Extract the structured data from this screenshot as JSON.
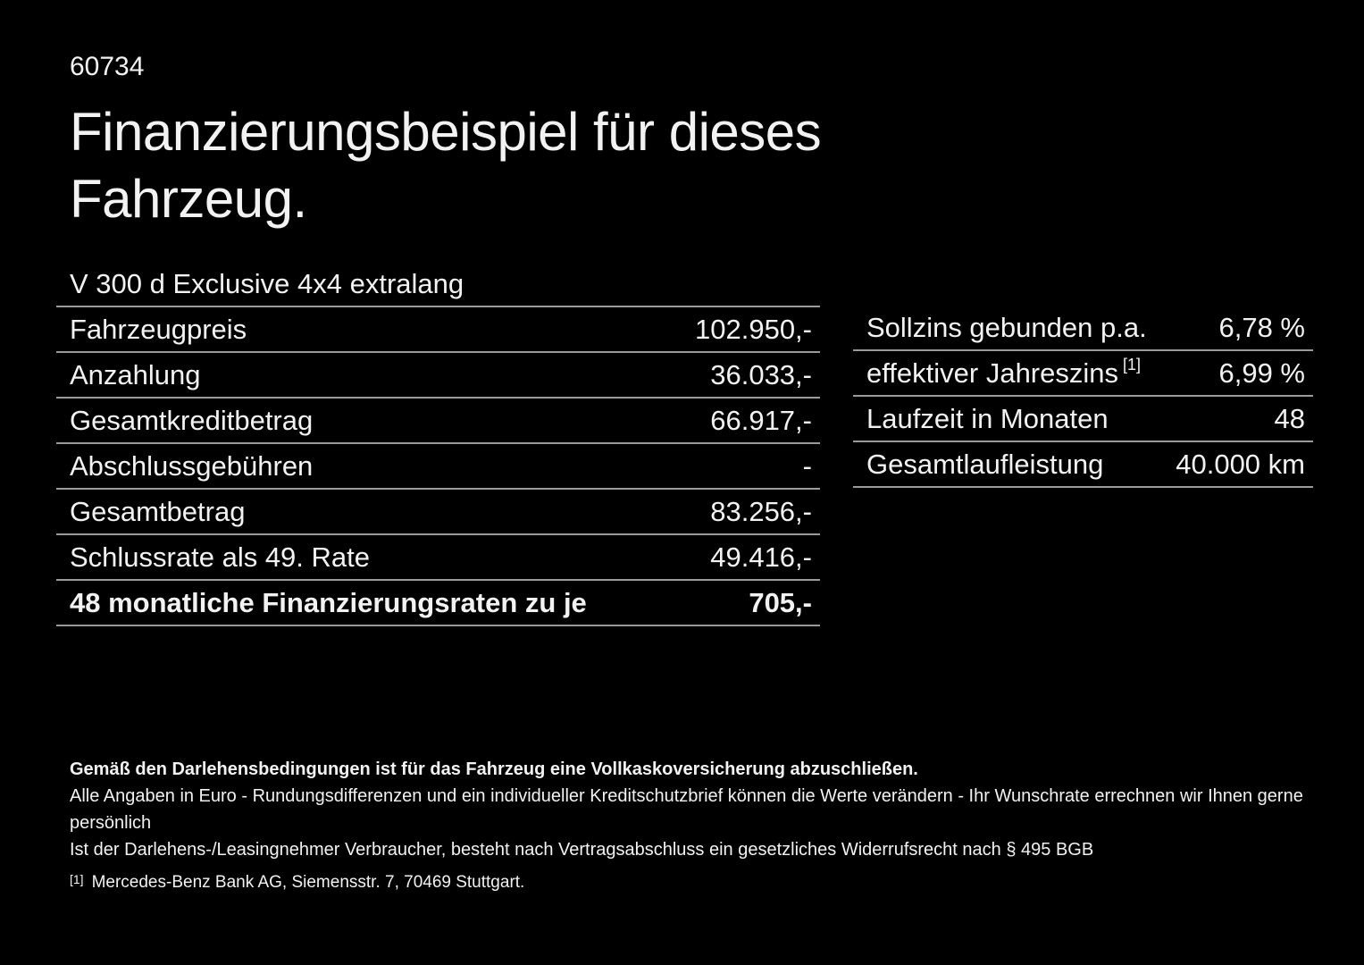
{
  "page": {
    "vehicle_id": "60734",
    "title": "Finanzierungsbeispiel für dieses Fahrzeug.",
    "model": "V 300 d Exclusive 4x4 extralang"
  },
  "finance_table": {
    "rows": [
      {
        "label": "Fahrzeugpreis",
        "value": "102.950,-"
      },
      {
        "label": "Anzahlung",
        "value": "36.033,-"
      },
      {
        "label": "Gesamtkreditbetrag",
        "value": "66.917,-"
      },
      {
        "label": "Abschlussgebühren",
        "value": "-"
      },
      {
        "label": "Gesamtbetrag",
        "value": "83.256,-"
      },
      {
        "label": "Schlussrate als 49. Rate",
        "value": "49.416,-"
      },
      {
        "label": "48 monatliche Finanzierungsraten zu je",
        "value": "705,-"
      }
    ]
  },
  "conditions_table": {
    "rows": [
      {
        "label": "Sollzins gebunden p.a.",
        "label_sup": "",
        "value": "6,78 %"
      },
      {
        "label": "effektiver Jahreszins",
        "label_sup": "[1]",
        "value": "6,99 %"
      },
      {
        "label": "Laufzeit in Monaten",
        "label_sup": "",
        "value": "48"
      },
      {
        "label": "Gesamtlaufleistung",
        "label_sup": "",
        "value": "40.000 km"
      }
    ]
  },
  "footer": {
    "insurance_note": "Gemäß den Darlehensbedingungen ist für das Fahrzeug eine Vollkaskoversicherung abzuschließen.",
    "disclaimer_rounding": "Alle Angaben in Euro - Rundungsdifferenzen und ein individueller Kreditschutzbrief können die Werte verändern - Ihr Wunschrate errechnen wir Ihnen gerne persönlich",
    "disclaimer_widerruf": "Ist der Darlehens-/Leasingnehmer Verbraucher, besteht nach Vertragsabschluss ein gesetzliches Widerrufsrecht nach § 495 BGB",
    "footnote_marker": "[1]",
    "footnote_text": "Mercedes-Benz Bank AG, Siemensstr. 7, 70469 Stuttgart."
  },
  "colors": {
    "background": "#000000",
    "text": "#f2f2f2",
    "divider": "#9a9a9a"
  }
}
